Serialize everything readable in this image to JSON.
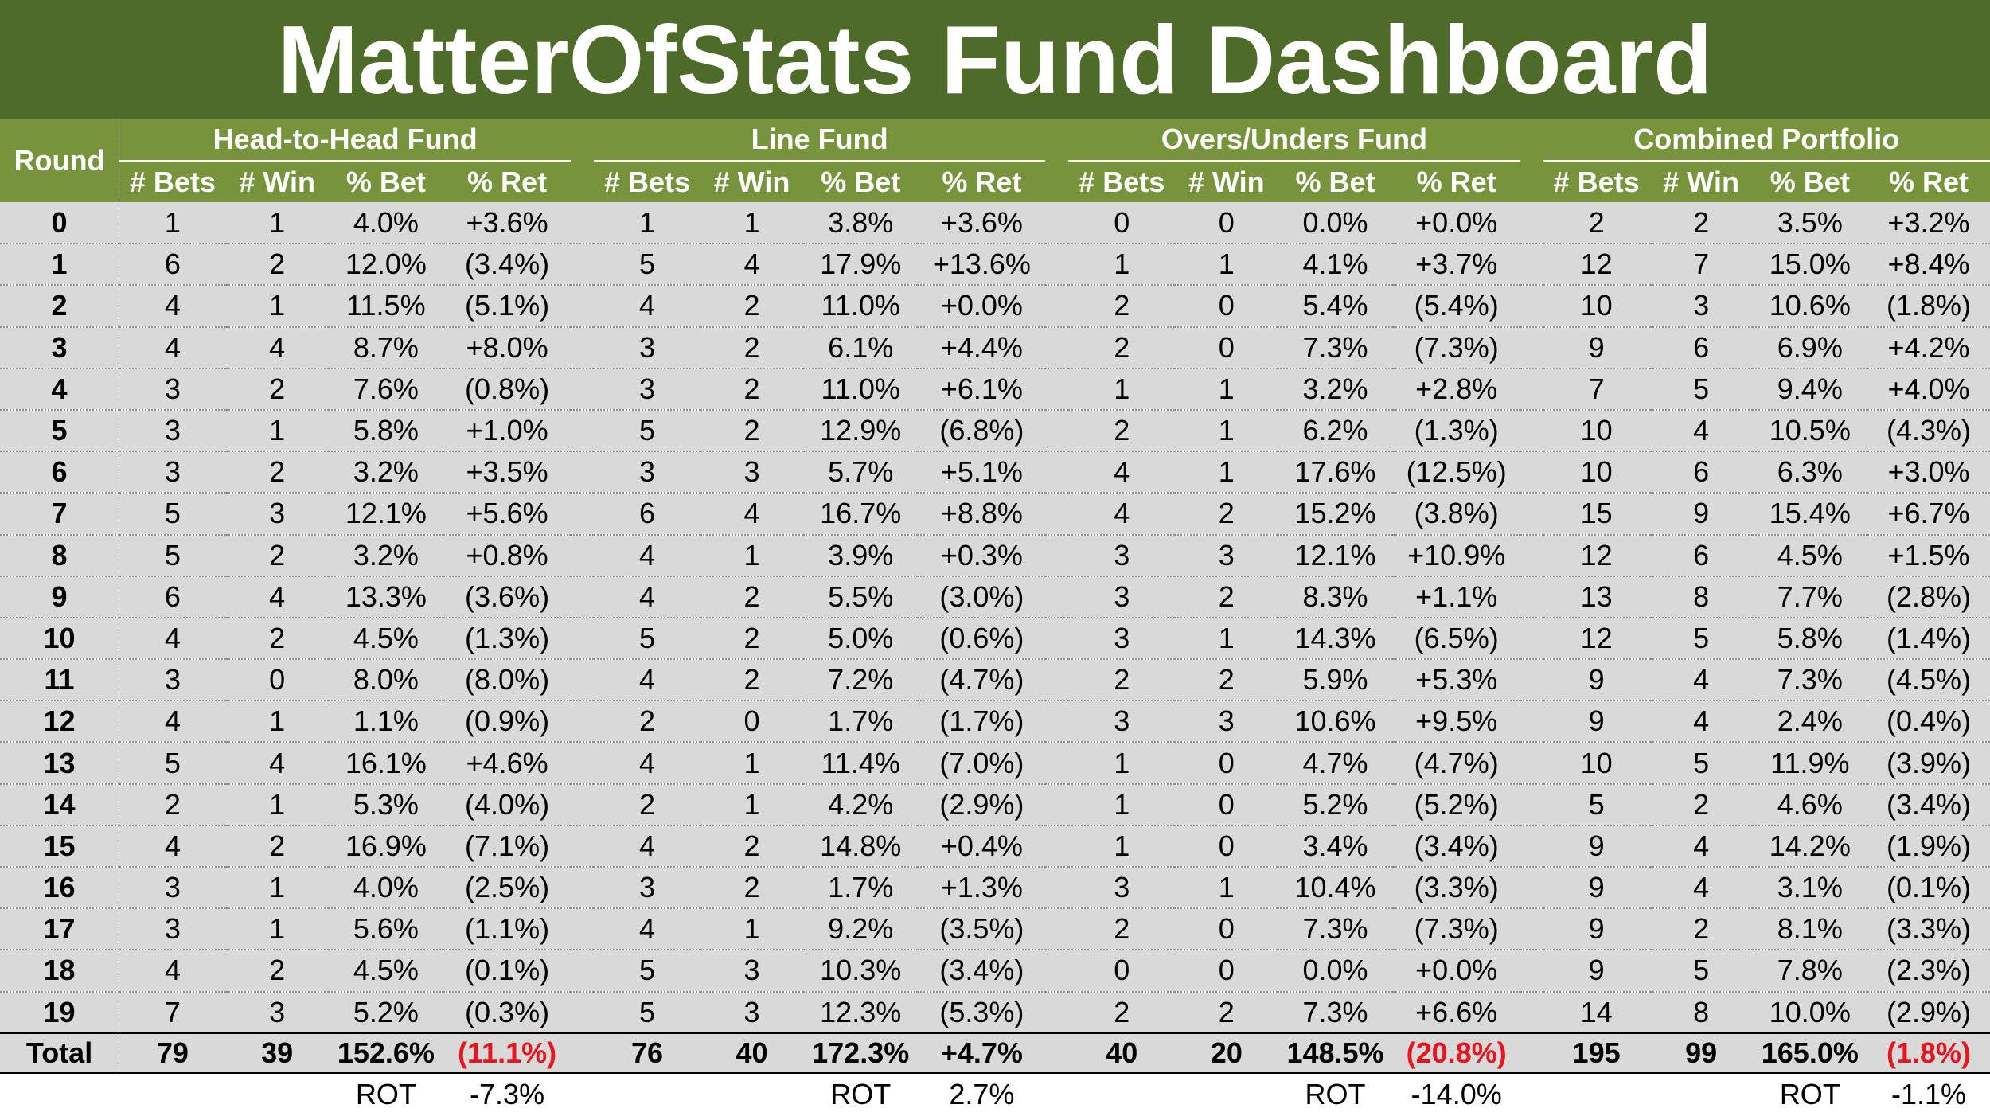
{
  "title": "MatterOfStats Fund Dashboard",
  "colors": {
    "header_dark": "#4e6b2a",
    "header": "#77933c",
    "row_bg": "#d9d9d9",
    "separator": "#808080",
    "negative": "#e8141e"
  },
  "chart_data": {
    "type": "table",
    "round_header": "Round",
    "groups": [
      "Head-to-Head Fund",
      "Line Fund",
      "Overs/Unders Fund",
      "Combined Portfolio"
    ],
    "columns": [
      "# Bets",
      "# Win",
      "% Bet",
      "% Ret"
    ],
    "rows": [
      {
        "round": "0",
        "cells": [
          [
            "1",
            "1",
            "4.0%",
            "+3.6%"
          ],
          [
            "1",
            "1",
            "3.8%",
            "+3.6%"
          ],
          [
            "0",
            "0",
            "0.0%",
            "+0.0%"
          ],
          [
            "2",
            "2",
            "3.5%",
            "+3.2%"
          ]
        ]
      },
      {
        "round": "1",
        "cells": [
          [
            "6",
            "2",
            "12.0%",
            "(3.4%)"
          ],
          [
            "5",
            "4",
            "17.9%",
            "+13.6%"
          ],
          [
            "1",
            "1",
            "4.1%",
            "+3.7%"
          ],
          [
            "12",
            "7",
            "15.0%",
            "+8.4%"
          ]
        ]
      },
      {
        "round": "2",
        "cells": [
          [
            "4",
            "1",
            "11.5%",
            "(5.1%)"
          ],
          [
            "4",
            "2",
            "11.0%",
            "+0.0%"
          ],
          [
            "2",
            "0",
            "5.4%",
            "(5.4%)"
          ],
          [
            "10",
            "3",
            "10.6%",
            "(1.8%)"
          ]
        ]
      },
      {
        "round": "3",
        "cells": [
          [
            "4",
            "4",
            "8.7%",
            "+8.0%"
          ],
          [
            "3",
            "2",
            "6.1%",
            "+4.4%"
          ],
          [
            "2",
            "0",
            "7.3%",
            "(7.3%)"
          ],
          [
            "9",
            "6",
            "6.9%",
            "+4.2%"
          ]
        ]
      },
      {
        "round": "4",
        "cells": [
          [
            "3",
            "2",
            "7.6%",
            "(0.8%)"
          ],
          [
            "3",
            "2",
            "11.0%",
            "+6.1%"
          ],
          [
            "1",
            "1",
            "3.2%",
            "+2.8%"
          ],
          [
            "7",
            "5",
            "9.4%",
            "+4.0%"
          ]
        ]
      },
      {
        "round": "5",
        "cells": [
          [
            "3",
            "1",
            "5.8%",
            "+1.0%"
          ],
          [
            "5",
            "2",
            "12.9%",
            "(6.8%)"
          ],
          [
            "2",
            "1",
            "6.2%",
            "(1.3%)"
          ],
          [
            "10",
            "4",
            "10.5%",
            "(4.3%)"
          ]
        ]
      },
      {
        "round": "6",
        "cells": [
          [
            "3",
            "2",
            "3.2%",
            "+3.5%"
          ],
          [
            "3",
            "3",
            "5.7%",
            "+5.1%"
          ],
          [
            "4",
            "1",
            "17.6%",
            "(12.5%)"
          ],
          [
            "10",
            "6",
            "6.3%",
            "+3.0%"
          ]
        ]
      },
      {
        "round": "7",
        "cells": [
          [
            "5",
            "3",
            "12.1%",
            "+5.6%"
          ],
          [
            "6",
            "4",
            "16.7%",
            "+8.8%"
          ],
          [
            "4",
            "2",
            "15.2%",
            "(3.8%)"
          ],
          [
            "15",
            "9",
            "15.4%",
            "+6.7%"
          ]
        ]
      },
      {
        "round": "8",
        "cells": [
          [
            "5",
            "2",
            "3.2%",
            "+0.8%"
          ],
          [
            "4",
            "1",
            "3.9%",
            "+0.3%"
          ],
          [
            "3",
            "3",
            "12.1%",
            "+10.9%"
          ],
          [
            "12",
            "6",
            "4.5%",
            "+1.5%"
          ]
        ]
      },
      {
        "round": "9",
        "cells": [
          [
            "6",
            "4",
            "13.3%",
            "(3.6%)"
          ],
          [
            "4",
            "2",
            "5.5%",
            "(3.0%)"
          ],
          [
            "3",
            "2",
            "8.3%",
            "+1.1%"
          ],
          [
            "13",
            "8",
            "7.7%",
            "(2.8%)"
          ]
        ]
      },
      {
        "round": "10",
        "cells": [
          [
            "4",
            "2",
            "4.5%",
            "(1.3%)"
          ],
          [
            "5",
            "2",
            "5.0%",
            "(0.6%)"
          ],
          [
            "3",
            "1",
            "14.3%",
            "(6.5%)"
          ],
          [
            "12",
            "5",
            "5.8%",
            "(1.4%)"
          ]
        ]
      },
      {
        "round": "11",
        "cells": [
          [
            "3",
            "0",
            "8.0%",
            "(8.0%)"
          ],
          [
            "4",
            "2",
            "7.2%",
            "(4.7%)"
          ],
          [
            "2",
            "2",
            "5.9%",
            "+5.3%"
          ],
          [
            "9",
            "4",
            "7.3%",
            "(4.5%)"
          ]
        ]
      },
      {
        "round": "12",
        "cells": [
          [
            "4",
            "1",
            "1.1%",
            "(0.9%)"
          ],
          [
            "2",
            "0",
            "1.7%",
            "(1.7%)"
          ],
          [
            "3",
            "3",
            "10.6%",
            "+9.5%"
          ],
          [
            "9",
            "4",
            "2.4%",
            "(0.4%)"
          ]
        ]
      },
      {
        "round": "13",
        "cells": [
          [
            "5",
            "4",
            "16.1%",
            "+4.6%"
          ],
          [
            "4",
            "1",
            "11.4%",
            "(7.0%)"
          ],
          [
            "1",
            "0",
            "4.7%",
            "(4.7%)"
          ],
          [
            "10",
            "5",
            "11.9%",
            "(3.9%)"
          ]
        ]
      },
      {
        "round": "14",
        "cells": [
          [
            "2",
            "1",
            "5.3%",
            "(4.0%)"
          ],
          [
            "2",
            "1",
            "4.2%",
            "(2.9%)"
          ],
          [
            "1",
            "0",
            "5.2%",
            "(5.2%)"
          ],
          [
            "5",
            "2",
            "4.6%",
            "(3.4%)"
          ]
        ]
      },
      {
        "round": "15",
        "cells": [
          [
            "4",
            "2",
            "16.9%",
            "(7.1%)"
          ],
          [
            "4",
            "2",
            "14.8%",
            "+0.4%"
          ],
          [
            "1",
            "0",
            "3.4%",
            "(3.4%)"
          ],
          [
            "9",
            "4",
            "14.2%",
            "(1.9%)"
          ]
        ]
      },
      {
        "round": "16",
        "cells": [
          [
            "3",
            "1",
            "4.0%",
            "(2.5%)"
          ],
          [
            "3",
            "2",
            "1.7%",
            "+1.3%"
          ],
          [
            "3",
            "1",
            "10.4%",
            "(3.3%)"
          ],
          [
            "9",
            "4",
            "3.1%",
            "(0.1%)"
          ]
        ]
      },
      {
        "round": "17",
        "cells": [
          [
            "3",
            "1",
            "5.6%",
            "(1.1%)"
          ],
          [
            "4",
            "1",
            "9.2%",
            "(3.5%)"
          ],
          [
            "2",
            "0",
            "7.3%",
            "(7.3%)"
          ],
          [
            "9",
            "2",
            "8.1%",
            "(3.3%)"
          ]
        ]
      },
      {
        "round": "18",
        "cells": [
          [
            "4",
            "2",
            "4.5%",
            "(0.1%)"
          ],
          [
            "5",
            "3",
            "10.3%",
            "(3.4%)"
          ],
          [
            "0",
            "0",
            "0.0%",
            "+0.0%"
          ],
          [
            "9",
            "5",
            "7.8%",
            "(2.3%)"
          ]
        ]
      },
      {
        "round": "19",
        "cells": [
          [
            "7",
            "3",
            "5.2%",
            "(0.3%)"
          ],
          [
            "5",
            "3",
            "12.3%",
            "(5.3%)"
          ],
          [
            "2",
            "2",
            "7.3%",
            "+6.6%"
          ],
          [
            "14",
            "8",
            "10.0%",
            "(2.9%)"
          ]
        ]
      }
    ],
    "total": {
      "label": "Total",
      "cells": [
        [
          "79",
          "39",
          "152.6%",
          "(11.1%)"
        ],
        [
          "76",
          "40",
          "172.3%",
          "+4.7%"
        ],
        [
          "40",
          "20",
          "148.5%",
          "(20.8%)"
        ],
        [
          "195",
          "99",
          "165.0%",
          "(1.8%)"
        ]
      ]
    },
    "rot": {
      "label": "ROT",
      "values": [
        "-7.3%",
        "2.7%",
        "-14.0%",
        "-1.1%"
      ]
    }
  }
}
